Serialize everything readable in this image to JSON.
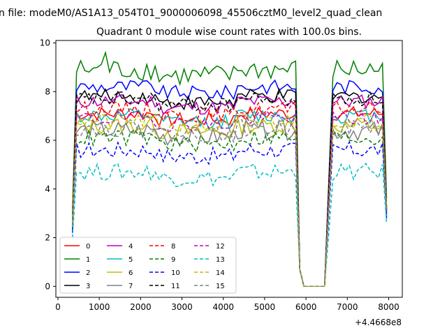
{
  "figure": {
    "suptitle": "n file: modeM0/AS1A13_054T01_9000006098_45506cztM0_level2_quad_clean"
  },
  "chart_data": {
    "type": "line",
    "title": "Quadrant 0 module wise count rates with 100.0s bins.",
    "xlabel": "",
    "ylabel": "",
    "x_offset_label": "+4.4668e8",
    "xlim": [
      -50,
      8330
    ],
    "ylim": [
      -0.45,
      10.1
    ],
    "xticks": [
      0,
      1000,
      2000,
      3000,
      4000,
      5000,
      6000,
      7000,
      8000
    ],
    "yticks": [
      0,
      2,
      4,
      6,
      8,
      10
    ],
    "grid": false,
    "legend_placement": "lower-left",
    "legend_columns": 4,
    "series": [
      {
        "name": "0",
        "color": "#ff0000",
        "dash": "solid",
        "level": 7.1,
        "amp": 0.3,
        "startY": 2.4
      },
      {
        "name": "1",
        "color": "#008000",
        "dash": "solid",
        "level": 8.9,
        "amp": 0.45,
        "startY": 3.0,
        "peak": 9.6
      },
      {
        "name": "2",
        "color": "#0000ff",
        "dash": "solid",
        "level": 8.2,
        "amp": 0.3,
        "startY": 2.2
      },
      {
        "name": "3",
        "color": "#000000",
        "dash": "solid",
        "level": 7.8,
        "amp": 0.3,
        "startY": 2.6
      },
      {
        "name": "4",
        "color": "#bf00bf",
        "dash": "solid",
        "level": 7.6,
        "amp": 0.3,
        "startY": 2.5
      },
      {
        "name": "5",
        "color": "#00bfbf",
        "dash": "solid",
        "level": 7.0,
        "amp": 0.3,
        "startY": 2.3
      },
      {
        "name": "6",
        "color": "#bfbf00",
        "dash": "solid",
        "level": 6.6,
        "amp": 0.35,
        "startY": 2.4
      },
      {
        "name": "7",
        "color": "#808080",
        "dash": "solid",
        "level": 6.4,
        "amp": 0.4,
        "startY": 2.5
      },
      {
        "name": "8",
        "color": "#ff0000",
        "dash": "dashed",
        "level": 7.3,
        "amp": 0.3,
        "startY": 2.6
      },
      {
        "name": "9",
        "color": "#008000",
        "dash": "dashed",
        "level": 6.1,
        "amp": 0.35,
        "startY": 2.5
      },
      {
        "name": "10",
        "color": "#0000ff",
        "dash": "dashed",
        "level": 5.6,
        "amp": 0.35,
        "startY": 2.3
      },
      {
        "name": "11",
        "color": "#000000",
        "dash": "dashed",
        "level": 7.7,
        "amp": 0.3,
        "startY": 2.7
      },
      {
        "name": "12",
        "color": "#bf00bf",
        "dash": "dashed",
        "level": 6.9,
        "amp": 0.3,
        "startY": 2.5
      },
      {
        "name": "13",
        "color": "#00bfbf",
        "dash": "dashed",
        "level": 4.7,
        "amp": 0.35,
        "startY": 2.0
      },
      {
        "name": "14",
        "color": "#bfbf00",
        "dash": "dashed",
        "level": 6.8,
        "amp": 0.3,
        "startY": 2.6
      },
      {
        "name": "15",
        "color": "#808080",
        "dash": "dashed",
        "level": 6.5,
        "amp": 0.35,
        "startY": 2.5
      }
    ],
    "segments": {
      "first": {
        "x_start": 350,
        "x_end": 5750,
        "bin": 100
      },
      "drop": [
        {
          "x": 5850,
          "value": 0.7
        },
        {
          "x": 5950,
          "value": 0.0
        },
        {
          "x": 6050,
          "value": 0.0
        },
        {
          "x": 6150,
          "value": 0.0
        },
        {
          "x": 6250,
          "value": 0.0
        },
        {
          "x": 6350,
          "value": 0.0
        },
        {
          "x": 6450,
          "value": 0.0
        }
      ],
      "second": {
        "x_start": 6650,
        "x_end": 7850,
        "bin": 100
      },
      "end_x": 7950
    }
  }
}
